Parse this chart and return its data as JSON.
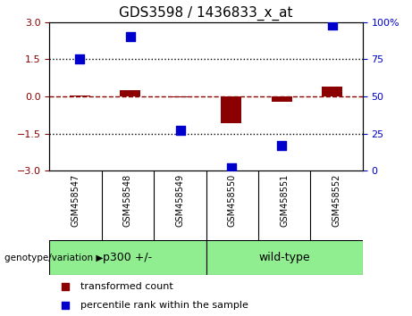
{
  "title": "GDS3598 / 1436833_x_at",
  "samples": [
    "GSM458547",
    "GSM458548",
    "GSM458549",
    "GSM458550",
    "GSM458551",
    "GSM458552"
  ],
  "transformed_count": [
    0.05,
    0.25,
    -0.05,
    -1.1,
    -0.2,
    0.4
  ],
  "percentile_rank": [
    75,
    90,
    27,
    2,
    17,
    98
  ],
  "bar_color": "#8B0000",
  "dot_color": "#0000CD",
  "ylim_left": [
    -3,
    3
  ],
  "ylim_right": [
    0,
    100
  ],
  "yticks_left": [
    -3,
    -1.5,
    0,
    1.5,
    3
  ],
  "yticks_right": [
    0,
    25,
    50,
    75,
    100
  ],
  "hline_y": 0,
  "dotted_lines": [
    -1.5,
    1.5
  ],
  "groups": [
    {
      "label": "p300 +/-",
      "start": 0,
      "end": 3,
      "color": "#90EE90"
    },
    {
      "label": "wild-type",
      "start": 3,
      "end": 6,
      "color": "#90EE90"
    }
  ],
  "group_row_label": "genotype/variation",
  "legend_items": [
    {
      "label": "transformed count",
      "color": "#8B0000"
    },
    {
      "label": "percentile rank within the sample",
      "color": "#0000CD"
    }
  ],
  "bar_width": 0.4,
  "dot_size": 50,
  "background_color": "#ffffff",
  "tick_label_color_left": "#8B0000",
  "tick_label_color_right": "#0000CD",
  "sample_box_color": "#d3d3d3",
  "group_box_border": "#000000"
}
